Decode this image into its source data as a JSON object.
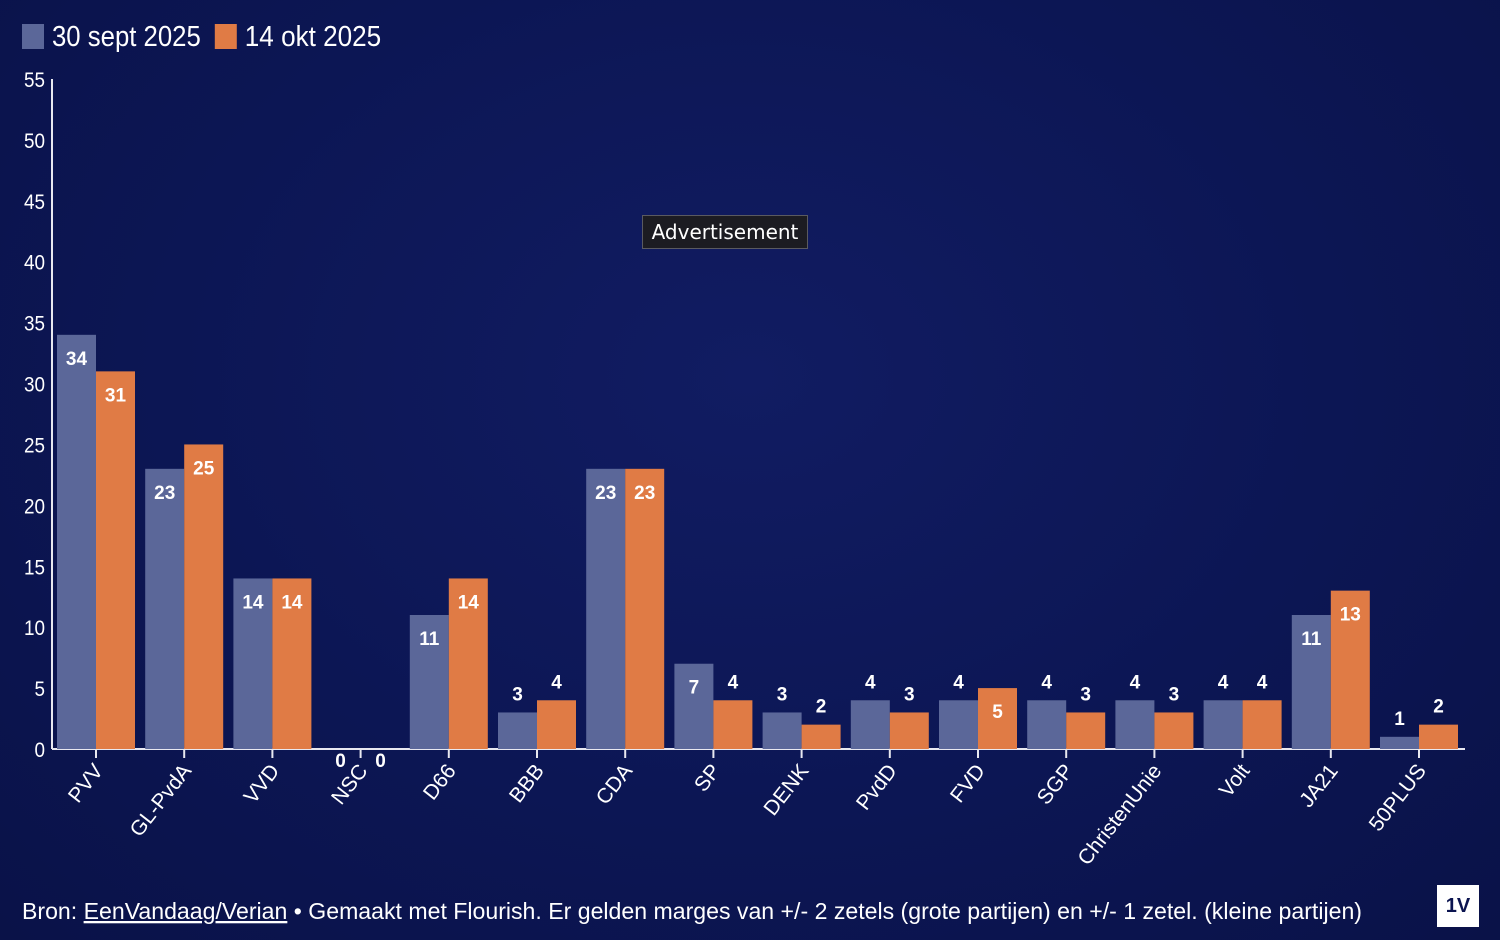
{
  "chart_data": {
    "type": "bar",
    "categories": [
      "PVV",
      "GL-PvdA",
      "VVD",
      "NSC",
      "D66",
      "BBB",
      "CDA",
      "SP",
      "DENK",
      "PvdD",
      "FVD",
      "SGP",
      "ChristenUnie",
      "Volt",
      "JA21",
      "50PLUS"
    ],
    "series": [
      {
        "name": "30 sept 2025",
        "color": "#5b6799",
        "values": [
          34,
          23,
          14,
          0,
          11,
          3,
          23,
          7,
          3,
          4,
          4,
          4,
          4,
          4,
          11,
          1
        ]
      },
      {
        "name": "14 okt 2025",
        "color": "#e07b45",
        "values": [
          31,
          25,
          14,
          0,
          14,
          4,
          23,
          4,
          2,
          3,
          5,
          3,
          3,
          4,
          13,
          2
        ]
      }
    ],
    "ylim": [
      0,
      55
    ],
    "yticks": [
      0,
      5,
      10,
      15,
      20,
      25,
      30,
      35,
      40,
      45,
      50,
      55
    ],
    "legend_position": "top-left",
    "grid": false
  },
  "footer": {
    "prefix": "Bron: ",
    "source_link": "EenVandaag/Verian",
    "rest": " • Gemaakt met Flourish. Er gelden marges van +/- 2 zetels (grote partijen) en +/- 1 zetel. (kleine partijen)"
  },
  "overlay": {
    "advertisement": "Advertisement"
  },
  "logo": {
    "text": "1V"
  }
}
